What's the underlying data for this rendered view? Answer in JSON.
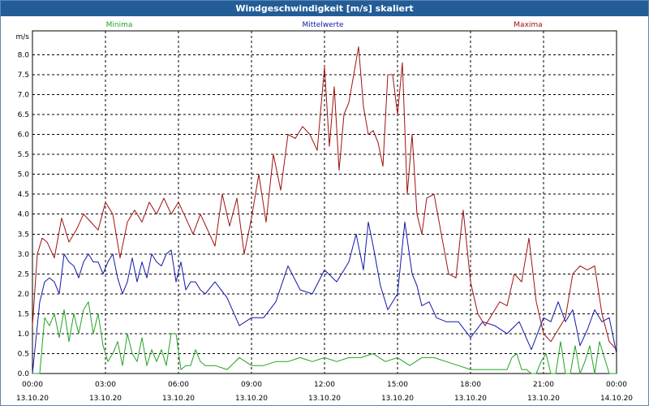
{
  "window": {
    "title": "Windgeschwindigkeit [m/s] skaliert"
  },
  "chart_data": {
    "type": "line",
    "y_unit": "m/s",
    "ylim": [
      0,
      8.6
    ],
    "y_ticks": [
      "0.0",
      "0.5",
      "1.0",
      "1.5",
      "2.0",
      "2.5",
      "3.0",
      "3.5",
      "4.0",
      "4.5",
      "5.0",
      "5.5",
      "6.0",
      "6.5",
      "7.0",
      "7.5",
      "8.0"
    ],
    "xlim": [
      0,
      24
    ],
    "x_unit": "hours since 00:00 13.10.20",
    "x_ticks": [
      {
        "time": "00:00",
        "date": "13.10.20"
      },
      {
        "time": "03:00",
        "date": "13.10.20"
      },
      {
        "time": "06:00",
        "date": "13.10.20"
      },
      {
        "time": "09:00",
        "date": "13.10.20"
      },
      {
        "time": "12:00",
        "date": "13.10.20"
      },
      {
        "time": "15:00",
        "date": "13.10.20"
      },
      {
        "time": "18:00",
        "date": "13.10.20"
      },
      {
        "time": "21:00",
        "date": "13.10.20"
      },
      {
        "time": "00:00",
        "date": "14.10.20"
      }
    ],
    "grid": true,
    "legend_position": "top",
    "series": [
      {
        "name": "Minima",
        "color": "#22a322",
        "x": [
          0,
          0.3,
          0.5,
          0.7,
          0.9,
          1.1,
          1.3,
          1.5,
          1.7,
          1.9,
          2.1,
          2.3,
          2.5,
          2.7,
          2.9,
          3.1,
          3.3,
          3.5,
          3.7,
          3.9,
          4.1,
          4.3,
          4.5,
          4.7,
          4.9,
          5.1,
          5.3,
          5.5,
          5.7,
          5.9,
          6.1,
          6.3,
          6.5,
          6.7,
          6.9,
          7.1,
          7.5,
          8,
          8.5,
          9,
          9.5,
          10,
          10.5,
          11,
          11.5,
          12,
          12.5,
          13,
          13.5,
          14,
          14.5,
          15,
          15.5,
          16,
          16.5,
          17,
          17.5,
          18,
          18.5,
          19,
          19.5,
          19.7,
          19.9,
          20.1,
          20.3,
          20.5,
          20.7,
          20.9,
          21.1,
          21.3,
          21.5,
          21.7,
          21.9,
          22.1,
          22.3,
          22.5,
          22.7,
          22.9,
          23.1,
          23.3,
          23.5,
          23.7,
          24
        ],
        "values": [
          0,
          0,
          1.4,
          1.2,
          1.5,
          0.9,
          1.6,
          0.8,
          1.5,
          1.0,
          1.6,
          1.8,
          1.0,
          1.5,
          0.7,
          0.3,
          0.5,
          0.8,
          0.2,
          1.0,
          0.5,
          0.3,
          0.9,
          0.2,
          0.6,
          0.3,
          0.6,
          0.2,
          1.0,
          1.0,
          0.1,
          0.2,
          0.2,
          0.6,
          0.3,
          0.2,
          0.2,
          0.1,
          0.4,
          0.2,
          0.2,
          0.3,
          0.3,
          0.4,
          0.3,
          0.4,
          0.3,
          0.4,
          0.4,
          0.5,
          0.3,
          0.4,
          0.2,
          0.4,
          0.4,
          0.3,
          0.2,
          0.1,
          0.1,
          0.1,
          0.1,
          0.4,
          0.5,
          0.1,
          0.1,
          0.0,
          0.0,
          0.3,
          0.5,
          0.0,
          0.0,
          0.8,
          0.0,
          0.0,
          0.7,
          0.0,
          0.3,
          0.7,
          0.0,
          0.8,
          0.4,
          0.0,
          0.0
        ]
      },
      {
        "name": "Mittelwerte",
        "color": "#1018a8",
        "x": [
          0,
          0.3,
          0.5,
          0.7,
          0.9,
          1.1,
          1.3,
          1.5,
          1.7,
          1.9,
          2.1,
          2.3,
          2.5,
          2.7,
          2.9,
          3.1,
          3.3,
          3.5,
          3.7,
          3.9,
          4.1,
          4.3,
          4.5,
          4.7,
          4.9,
          5.1,
          5.3,
          5.5,
          5.7,
          5.9,
          6.1,
          6.3,
          6.5,
          6.7,
          6.9,
          7.1,
          7.5,
          8,
          8.5,
          9,
          9.5,
          10,
          10.5,
          11,
          11.5,
          12,
          12.5,
          13,
          13.3,
          13.6,
          13.8,
          14,
          14.3,
          14.6,
          15,
          15.3,
          15.6,
          15.8,
          16,
          16.3,
          16.6,
          17,
          17.5,
          18,
          18.5,
          19,
          19.5,
          20,
          20.5,
          21,
          21.3,
          21.6,
          21.9,
          22.2,
          22.5,
          22.8,
          23.1,
          23.4,
          23.7,
          24
        ],
        "values": [
          0,
          1.8,
          2.3,
          2.4,
          2.3,
          2.0,
          3.0,
          2.8,
          2.7,
          2.4,
          2.8,
          3.0,
          2.8,
          2.8,
          2.5,
          2.8,
          3.0,
          2.4,
          2.0,
          2.3,
          2.9,
          2.3,
          2.8,
          2.4,
          3.0,
          2.8,
          2.7,
          3.0,
          3.1,
          2.3,
          2.8,
          2.1,
          2.3,
          2.3,
          2.1,
          2.0,
          2.3,
          1.9,
          1.2,
          1.4,
          1.4,
          1.8,
          2.7,
          2.1,
          2.0,
          2.6,
          2.3,
          2.8,
          3.5,
          2.6,
          3.8,
          3.2,
          2.2,
          1.6,
          2.0,
          3.8,
          2.5,
          2.2,
          1.7,
          1.8,
          1.4,
          1.3,
          1.3,
          0.9,
          1.3,
          1.2,
          1.0,
          1.3,
          0.6,
          1.4,
          1.3,
          1.8,
          1.3,
          1.6,
          0.7,
          1.1,
          1.6,
          1.3,
          1.4,
          0.5
        ]
      },
      {
        "name": "Maxima",
        "color": "#a01010",
        "x": [
          0,
          0.2,
          0.4,
          0.6,
          0.9,
          1.2,
          1.5,
          1.8,
          2.1,
          2.4,
          2.7,
          3,
          3.3,
          3.6,
          3.9,
          4.2,
          4.5,
          4.8,
          5.1,
          5.4,
          5.7,
          6,
          6.3,
          6.6,
          6.9,
          7.2,
          7.5,
          7.8,
          8.1,
          8.4,
          8.7,
          9,
          9.3,
          9.6,
          9.9,
          10.2,
          10.5,
          10.8,
          11.1,
          11.4,
          11.7,
          12,
          12.2,
          12.4,
          12.6,
          12.8,
          13,
          13.2,
          13.4,
          13.6,
          13.8,
          14,
          14.2,
          14.4,
          14.6,
          14.8,
          15,
          15.2,
          15.4,
          15.6,
          15.8,
          16,
          16.2,
          16.5,
          16.8,
          17.1,
          17.4,
          17.7,
          18,
          18.3,
          18.6,
          18.9,
          19.2,
          19.5,
          19.8,
          20.1,
          20.4,
          20.7,
          21,
          21.3,
          21.6,
          21.9,
          22.2,
          22.5,
          22.8,
          23.1,
          23.4,
          23.7,
          24
        ],
        "values": [
          1.2,
          3.0,
          3.4,
          3.3,
          2.9,
          3.9,
          3.3,
          3.6,
          4.0,
          3.8,
          3.6,
          4.3,
          4.0,
          2.9,
          3.8,
          4.1,
          3.8,
          4.3,
          4.0,
          4.4,
          4.0,
          4.3,
          3.9,
          3.5,
          4.0,
          3.6,
          3.2,
          4.5,
          3.7,
          4.4,
          3.0,
          3.9,
          5.0,
          3.8,
          5.5,
          4.6,
          6.0,
          5.9,
          6.2,
          6.0,
          5.6,
          7.7,
          5.7,
          7.2,
          5.1,
          6.5,
          6.8,
          7.5,
          8.2,
          6.7,
          6.0,
          6.1,
          5.8,
          5.2,
          7.5,
          7.5,
          6.5,
          7.8,
          4.5,
          6.0,
          4.0,
          3.5,
          4.4,
          4.5,
          3.5,
          2.5,
          2.4,
          4.1,
          2.3,
          1.5,
          1.2,
          1.5,
          1.8,
          1.7,
          2.5,
          2.3,
          3.4,
          1.8,
          1.0,
          0.8,
          1.1,
          1.4,
          2.5,
          2.7,
          2.6,
          2.7,
          1.5,
          0.8,
          0.6
        ]
      }
    ]
  }
}
